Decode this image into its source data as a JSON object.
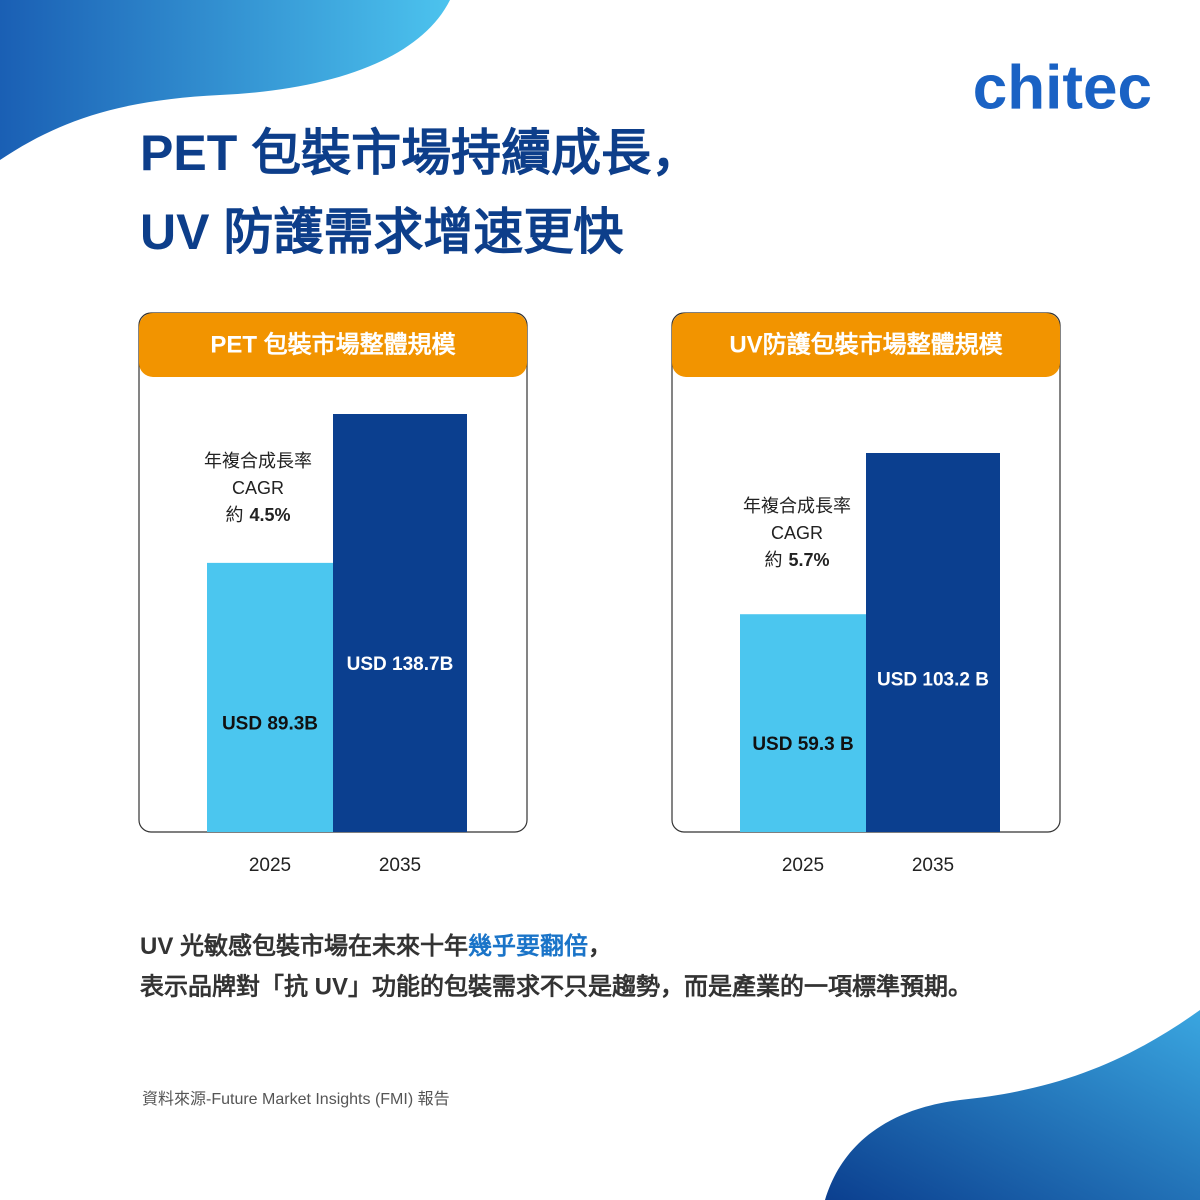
{
  "logo": "chitec",
  "headline": [
    "PET 包裝市場持續成長，",
    "UV 防護需求增速更快"
  ],
  "chart_data": [
    {
      "type": "bar",
      "title": "PET 包裝市場整體規模",
      "categories": [
        "2025",
        "2035"
      ],
      "values": [
        89.3,
        138.7
      ],
      "value_labels": [
        "USD 89.3B",
        "USD 138.7B"
      ],
      "colors": [
        "#4bc6ef",
        "#0b3f8f"
      ],
      "annotation": [
        "年複合成長率",
        "CAGR",
        "約",
        "4.5%"
      ]
    },
    {
      "type": "bar",
      "title": "UV防護包裝市場整體規模",
      "categories": [
        "2025",
        "2035"
      ],
      "values": [
        59.3,
        103.2
      ],
      "value_labels": [
        "USD 59.3 B",
        "USD 103.2 B"
      ],
      "colors": [
        "#4bc6ef",
        "#0b3f8f"
      ],
      "annotation": [
        "年複合成長率",
        "CAGR",
        "約",
        "5.7%"
      ]
    }
  ],
  "conclusion": {
    "line1": [
      "UV 光敏感包裝市場在未來十年",
      "幾乎要翻倍",
      "，"
    ],
    "line2": "表示品牌對「抗 UV」功能的包裝需求不只是趨勢，而是產業的一項標準預期。"
  },
  "source": "資料來源-Future Market Insights (FMI) 報告"
}
